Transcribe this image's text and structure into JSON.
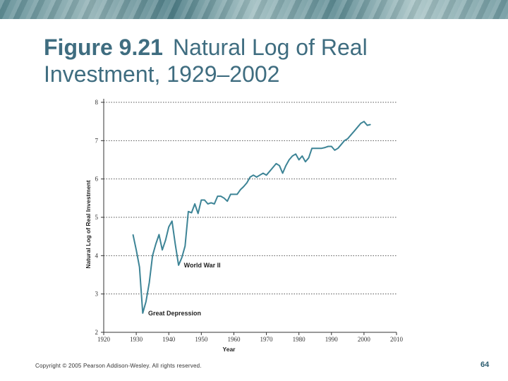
{
  "title": {
    "bold": "Figure 9.21",
    "rest": "Natural Log of Real Investment, 1929–2002"
  },
  "footer": "Copyright © 2005 Pearson Addison-Wesley. All rights reserved.",
  "page_number": "64",
  "colors": {
    "line": "#3d8496",
    "title": "#3f6d80",
    "grid": "#555555"
  },
  "chart_data": {
    "type": "line",
    "title": "",
    "xlabel": "Year",
    "ylabel": "Natural Log of Real Investment",
    "xlim": [
      1920,
      2010
    ],
    "ylim": [
      2,
      8
    ],
    "xticks": [
      1920,
      1930,
      1940,
      1950,
      1960,
      1970,
      1980,
      1990,
      2000,
      2010
    ],
    "yticks": [
      2,
      3,
      4,
      5,
      6,
      7,
      8
    ],
    "grid": "horizontal dotted",
    "series": [
      {
        "name": "Natural Log of Real Investment",
        "x": [
          1929,
          1930,
          1931,
          1932,
          1933,
          1934,
          1935,
          1936,
          1937,
          1938,
          1939,
          1940,
          1941,
          1942,
          1943,
          1944,
          1945,
          1946,
          1947,
          1948,
          1949,
          1950,
          1951,
          1952,
          1953,
          1954,
          1955,
          1956,
          1957,
          1958,
          1959,
          1960,
          1961,
          1962,
          1963,
          1964,
          1965,
          1966,
          1967,
          1968,
          1969,
          1970,
          1971,
          1972,
          1973,
          1974,
          1975,
          1976,
          1977,
          1978,
          1979,
          1980,
          1981,
          1982,
          1983,
          1984,
          1985,
          1986,
          1987,
          1988,
          1989,
          1990,
          1991,
          1992,
          1993,
          1994,
          1995,
          1996,
          1997,
          1998,
          1999,
          2000,
          2001,
          2002
        ],
        "y": [
          4.55,
          4.15,
          3.7,
          2.5,
          2.8,
          3.3,
          4.0,
          4.3,
          4.55,
          4.15,
          4.4,
          4.75,
          4.9,
          4.3,
          3.75,
          3.95,
          4.25,
          5.15,
          5.12,
          5.35,
          5.1,
          5.45,
          5.45,
          5.35,
          5.38,
          5.35,
          5.55,
          5.55,
          5.5,
          5.42,
          5.6,
          5.6,
          5.6,
          5.72,
          5.8,
          5.9,
          6.05,
          6.1,
          6.05,
          6.1,
          6.15,
          6.1,
          6.2,
          6.3,
          6.4,
          6.35,
          6.15,
          6.35,
          6.5,
          6.6,
          6.65,
          6.5,
          6.6,
          6.45,
          6.55,
          6.8,
          6.8,
          6.8,
          6.8,
          6.82,
          6.85,
          6.85,
          6.75,
          6.8,
          6.9,
          7.0,
          7.05,
          7.15,
          7.25,
          7.35,
          7.45,
          7.5,
          7.4,
          7.42
        ]
      }
    ],
    "annotations": [
      {
        "text": "Great Depression",
        "x": 1933,
        "y": 2.5
      },
      {
        "text": "World War II",
        "x": 1944,
        "y": 3.75
      }
    ]
  }
}
